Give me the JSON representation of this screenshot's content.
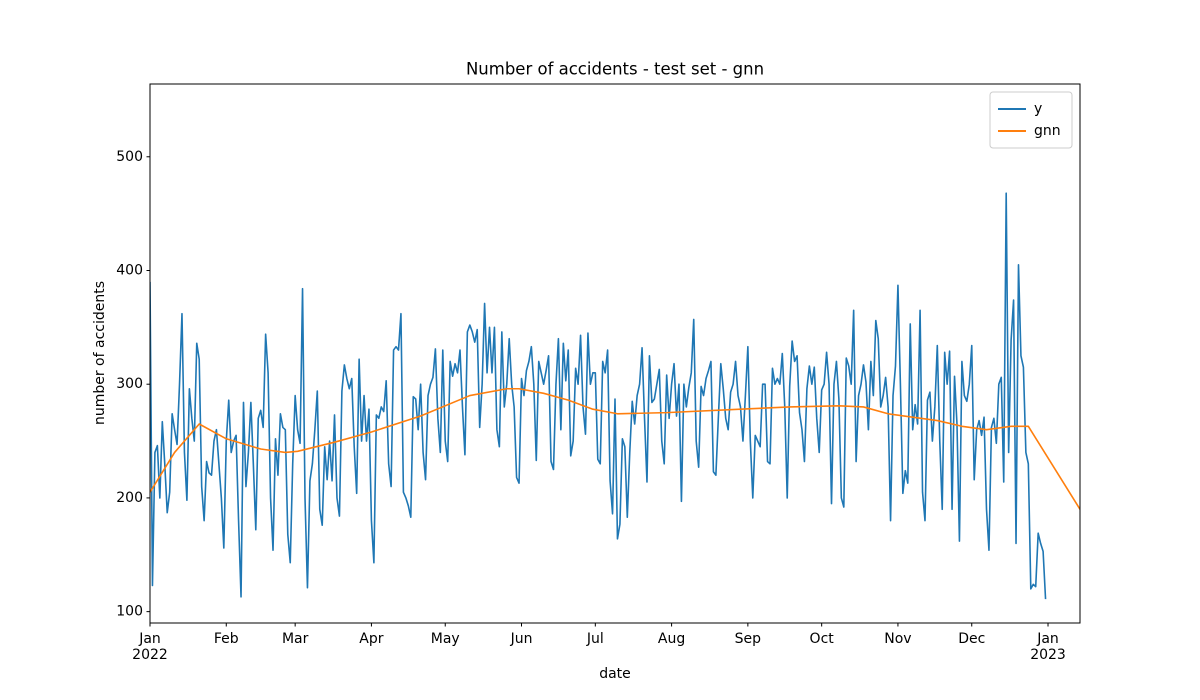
{
  "chart_data": {
    "type": "line",
    "title": "Number of accidents - test set - gnn",
    "xlabel": "date",
    "ylabel": "number of accidents",
    "xlim": [
      0,
      378
    ],
    "ylim": [
      90,
      564
    ],
    "xticks": [
      {
        "value": 0,
        "label": "Jan\n2022"
      },
      {
        "value": 31,
        "label": "Feb"
      },
      {
        "value": 59,
        "label": "Mar"
      },
      {
        "value": 90,
        "label": "Apr"
      },
      {
        "value": 120,
        "label": "May"
      },
      {
        "value": 151,
        "label": "Jun"
      },
      {
        "value": 181,
        "label": "Jul"
      },
      {
        "value": 212,
        "label": "Aug"
      },
      {
        "value": 243,
        "label": "Sep"
      },
      {
        "value": 273,
        "label": "Oct"
      },
      {
        "value": 304,
        "label": "Nov"
      },
      {
        "value": 334,
        "label": "Dec"
      },
      {
        "value": 365,
        "label": "Jan\n2023"
      }
    ],
    "yticks": [
      100,
      200,
      300,
      400,
      500
    ],
    "legend": "upper right",
    "series": [
      {
        "name": "y",
        "color": "#1f77b4",
        "x": [
          0,
          1,
          2,
          3,
          4,
          5,
          6,
          7,
          8,
          9,
          10,
          11,
          12,
          13,
          14,
          15,
          16,
          17,
          18,
          19,
          20,
          21,
          22,
          23,
          24,
          25,
          26,
          27,
          28,
          29,
          30,
          31,
          32,
          33,
          34,
          35,
          36,
          37,
          38,
          39,
          40,
          41,
          42,
          43,
          44,
          45,
          46,
          47,
          48,
          49,
          50,
          51,
          52,
          53,
          54,
          55,
          56,
          57,
          58,
          59,
          60,
          61,
          62,
          63,
          64,
          65,
          66,
          67,
          68,
          69,
          70,
          71,
          72,
          73,
          74,
          75,
          76,
          77,
          78,
          79,
          80,
          81,
          82,
          83,
          84,
          85,
          86,
          87,
          88,
          89,
          90,
          91,
          92,
          93,
          94,
          95,
          96,
          97,
          98,
          99,
          100,
          101,
          102,
          103,
          104,
          105,
          106,
          107,
          108,
          109,
          110,
          111,
          112,
          113,
          114,
          115,
          116,
          117,
          118,
          119,
          120,
          121,
          122,
          123,
          124,
          125,
          126,
          127,
          128,
          129,
          130,
          131,
          132,
          133,
          134,
          135,
          136,
          137,
          138,
          139,
          140,
          141,
          142,
          143,
          144,
          145,
          146,
          147,
          148,
          149,
          150,
          151,
          152,
          153,
          154,
          155,
          156,
          157,
          158,
          159,
          160,
          161,
          162,
          163,
          164,
          165,
          166,
          167,
          168,
          169,
          170,
          171,
          172,
          173,
          174,
          175,
          176,
          177,
          178,
          179,
          180,
          181,
          182,
          183,
          184,
          185,
          186,
          187,
          188,
          189,
          190,
          191,
          192,
          193,
          194,
          195,
          196,
          197,
          198,
          199,
          200,
          201,
          202,
          203,
          204,
          205,
          206,
          207,
          208,
          209,
          210,
          211,
          212,
          213,
          214,
          215,
          216,
          217,
          218,
          219,
          220,
          221,
          222,
          223,
          224,
          225,
          226,
          227,
          228,
          229,
          230,
          231,
          232,
          233,
          234,
          235,
          236,
          237,
          238,
          239,
          240,
          241,
          242,
          243,
          244,
          245,
          246,
          247,
          248,
          249,
          250,
          251,
          252,
          253,
          254,
          255,
          256,
          257,
          258,
          259,
          260,
          261,
          262,
          263,
          264,
          265,
          266,
          267,
          268,
          269,
          270,
          271,
          272,
          273,
          274,
          275,
          276,
          277,
          278,
          279,
          280,
          281,
          282,
          283,
          284,
          285,
          286,
          287,
          288,
          289,
          290,
          291,
          292,
          293,
          294,
          295,
          296,
          297,
          298,
          299,
          300,
          301,
          302,
          303,
          304,
          305,
          306,
          307,
          308,
          309,
          310,
          311,
          312,
          313,
          314,
          315,
          316,
          317,
          318,
          319,
          320,
          321,
          322,
          323,
          324,
          325,
          326,
          327,
          328,
          329,
          330,
          331,
          332,
          333,
          334,
          335,
          336,
          337,
          338,
          339,
          340,
          341,
          342,
          343,
          344,
          345,
          346,
          347,
          348,
          349,
          350,
          351,
          352,
          353,
          354,
          355,
          356,
          357,
          358,
          359,
          360,
          361,
          362,
          363,
          364
        ],
        "values": [
          390,
          123,
          240,
          246,
          200,
          267,
          230,
          187,
          205,
          274,
          260,
          247,
          300,
          362,
          240,
          198,
          296,
          270,
          250,
          336,
          322,
          210,
          180,
          232,
          222,
          220,
          250,
          260,
          230,
          200,
          156,
          250,
          286,
          240,
          250,
          255,
          180,
          113,
          284,
          210,
          240,
          284,
          230,
          172,
          270,
          277,
          262,
          344,
          310,
          200,
          154,
          252,
          220,
          274,
          262,
          260,
          168,
          143,
          230,
          290,
          260,
          248,
          384,
          200,
          121,
          215,
          230,
          260,
          294,
          190,
          176,
          245,
          216,
          250,
          215,
          273,
          200,
          184,
          294,
          317,
          305,
          296,
          305,
          245,
          204,
          322,
          250,
          290,
          250,
          278,
          180,
          143,
          273,
          270,
          280,
          276,
          303,
          230,
          210,
          330,
          333,
          330,
          362,
          205,
          200,
          193,
          183,
          289,
          287,
          260,
          300,
          240,
          216,
          290,
          300,
          306,
          331,
          270,
          240,
          330,
          250,
          232,
          320,
          307,
          318,
          310,
          330,
          280,
          238,
          346,
          352,
          346,
          337,
          348,
          262,
          300,
          371,
          310,
          350,
          310,
          350,
          260,
          245,
          346,
          280,
          300,
          340,
          300,
          280,
          218,
          213,
          305,
          290,
          312,
          320,
          333,
          300,
          233,
          320,
          310,
          300,
          312,
          325,
          232,
          225,
          300,
          340,
          260,
          336,
          303,
          330,
          237,
          250,
          314,
          300,
          343,
          280,
          256,
          345,
          300,
          310,
          310,
          234,
          230,
          320,
          310,
          330,
          215,
          186,
          287,
          164,
          177,
          252,
          245,
          183,
          240,
          285,
          265,
          290,
          300,
          332,
          270,
          214,
          325,
          284,
          287,
          300,
          313,
          250,
          230,
          308,
          270,
          300,
          318,
          272,
          300,
          197,
          300,
          280,
          297,
          310,
          357,
          250,
          227,
          298,
          290,
          305,
          312,
          320,
          223,
          220,
          270,
          318,
          296,
          270,
          260,
          293,
          300,
          320,
          290,
          280,
          250,
          290,
          333,
          250,
          200,
          255,
          250,
          245,
          300,
          300,
          232,
          230,
          314,
          300,
          305,
          300,
          327,
          280,
          200,
          298,
          338,
          320,
          325,
          275,
          260,
          232,
          296,
          316,
          300,
          315,
          270,
          240,
          295,
          300,
          328,
          300,
          195,
          300,
          320,
          287,
          200,
          192,
          323,
          316,
          300,
          365,
          232,
          290,
          300,
          317,
          302,
          260,
          320,
          290,
          356,
          340,
          280,
          290,
          306,
          280,
          180,
          290,
          316,
          387,
          300,
          204,
          224,
          213,
          353,
          260,
          282,
          265,
          365,
          205,
          180,
          286,
          293,
          250,
          280,
          334,
          250,
          190,
          328,
          300,
          329,
          190,
          307,
          265,
          162,
          320,
          290,
          285,
          300,
          334,
          216,
          260,
          268,
          255,
          271,
          190,
          154,
          262,
          270,
          248,
          300,
          306,
          214,
          468,
          240,
          339,
          374,
          160,
          405,
          325,
          315,
          240,
          230,
          120,
          124,
          122,
          169,
          160,
          153,
          111
        ]
      },
      {
        "name": "gnn",
        "color": "#ff7f0e",
        "x": [
          0,
          10,
          20,
          31,
          45,
          55,
          60,
          75,
          90,
          110,
          130,
          145,
          150,
          160,
          170,
          180,
          190,
          210,
          240,
          260,
          280,
          290,
          300,
          320,
          330,
          340,
          350,
          357,
          378
        ],
        "values": [
          205,
          240,
          265,
          252,
          243,
          240,
          241,
          249,
          258,
          272,
          290,
          296,
          296,
          292,
          286,
          278,
          274,
          275,
          278,
          280,
          281,
          280,
          274,
          268,
          263,
          260,
          263,
          263,
          190
        ]
      }
    ]
  }
}
